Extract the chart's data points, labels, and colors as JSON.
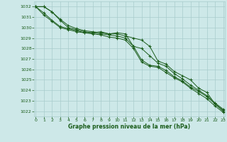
{
  "title": "Graphe pression niveau de la mer (hPa)",
  "bg_color": "#cde8e8",
  "plot_bg_color": "#cde8e8",
  "grid_color": "#a8cccc",
  "line_color": "#1a5c1a",
  "marker_color": "#1a5c1a",
  "ylim": [
    1021.5,
    1032.5
  ],
  "xlim": [
    -0.2,
    23.2
  ],
  "yticks": [
    1022,
    1023,
    1024,
    1025,
    1026,
    1027,
    1028,
    1029,
    1030,
    1031,
    1032
  ],
  "xticks": [
    0,
    1,
    2,
    3,
    4,
    5,
    6,
    7,
    8,
    9,
    10,
    11,
    12,
    13,
    14,
    15,
    16,
    17,
    18,
    19,
    20,
    21,
    22,
    23
  ],
  "line1": [
    1032,
    1032,
    1031.5,
    1030.7,
    1030.0,
    1029.8,
    1029.6,
    1029.5,
    1029.6,
    1029.4,
    1029.4,
    1029.2,
    1029.0,
    1028.8,
    1028.2,
    1026.8,
    1026.5,
    1025.8,
    1025.4,
    1025.0,
    1024.2,
    1023.8,
    1022.7,
    1022.1
  ],
  "line2": [
    1032,
    1031.4,
    1030.7,
    1030.1,
    1029.9,
    1029.7,
    1029.5,
    1029.5,
    1029.4,
    1029.3,
    1029.2,
    1029.0,
    1028.2,
    1026.9,
    1026.4,
    1026.3,
    1025.9,
    1025.3,
    1024.9,
    1024.3,
    1023.9,
    1023.4,
    1022.7,
    1022.0
  ],
  "line3": [
    1032,
    1031.2,
    1030.6,
    1030.0,
    1029.8,
    1029.6,
    1029.5,
    1029.4,
    1029.3,
    1029.1,
    1029.0,
    1028.8,
    1028.0,
    1026.7,
    1026.3,
    1026.2,
    1025.7,
    1025.2,
    1024.8,
    1024.2,
    1023.7,
    1023.2,
    1022.5,
    1021.9
  ],
  "line4": [
    1032,
    1032,
    1031.5,
    1030.8,
    1030.2,
    1029.9,
    1029.7,
    1029.6,
    1029.5,
    1029.4,
    1029.5,
    1029.4,
    1028.2,
    1028.0,
    1027.3,
    1026.6,
    1026.3,
    1025.6,
    1025.1,
    1024.5,
    1024.0,
    1023.5,
    1022.8,
    1022.2
  ]
}
